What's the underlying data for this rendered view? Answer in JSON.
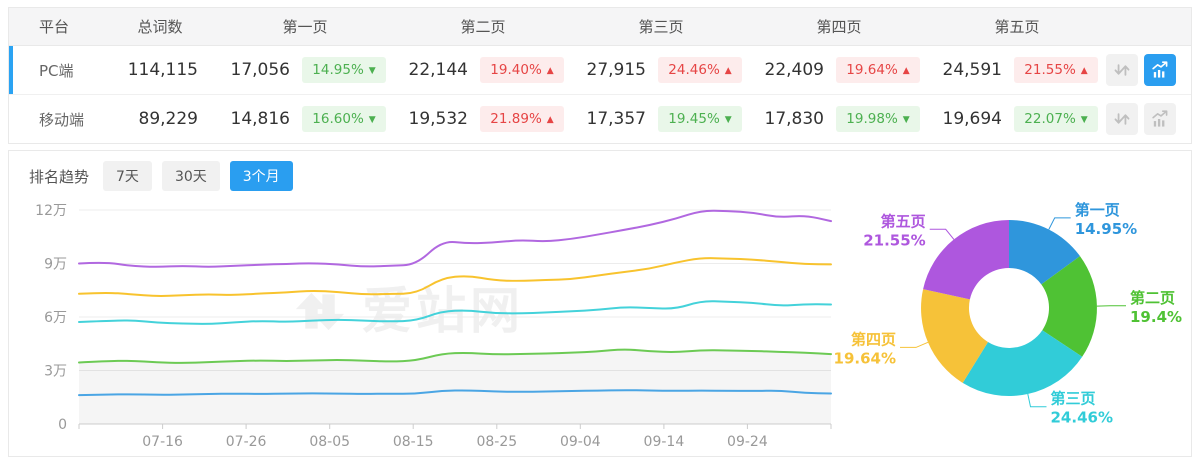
{
  "table": {
    "headers": {
      "platform": "平台",
      "total": "总词数",
      "pages": [
        "第一页",
        "第二页",
        "第三页",
        "第四页",
        "第五页"
      ]
    },
    "rows": [
      {
        "platform": "PC端",
        "total": "114,115",
        "selected": true,
        "chart_active": true,
        "pages": [
          {
            "count": "17,056",
            "pct": "14.95%",
            "dir": "down"
          },
          {
            "count": "22,144",
            "pct": "19.40%",
            "dir": "up"
          },
          {
            "count": "27,915",
            "pct": "24.46%",
            "dir": "up"
          },
          {
            "count": "22,409",
            "pct": "19.64%",
            "dir": "up"
          },
          {
            "count": "24,591",
            "pct": "21.55%",
            "dir": "up"
          }
        ]
      },
      {
        "platform": "移动端",
        "total": "89,229",
        "selected": false,
        "chart_active": false,
        "pages": [
          {
            "count": "14,816",
            "pct": "16.60%",
            "dir": "down"
          },
          {
            "count": "19,532",
            "pct": "21.89%",
            "dir": "up"
          },
          {
            "count": "17,357",
            "pct": "19.45%",
            "dir": "down"
          },
          {
            "count": "17,830",
            "pct": "19.98%",
            "dir": "down"
          },
          {
            "count": "19,694",
            "pct": "22.07%",
            "dir": "down"
          }
        ]
      }
    ],
    "icons": {
      "sort": "sort-arrows-icon",
      "chart": "trend-chart-icon"
    }
  },
  "trend": {
    "label": "排名趋势",
    "tabs": [
      {
        "label": "7天",
        "active": false
      },
      {
        "label": "30天",
        "active": false
      },
      {
        "label": "3个月",
        "active": true
      }
    ]
  },
  "watermark_text": "爱站网",
  "colors": {
    "accent_blue": "#2a9ef0",
    "selected_row_bar": "#2aa3f3",
    "badge_up_red": "#e64545",
    "badge_up_bg": "#fdecec",
    "badge_down_green": "#4cb050",
    "badge_down_bg": "#e9f7e9",
    "header_bg": "#f5f5f6",
    "border": "#e9e9e9",
    "grid_line": "#ececec",
    "axis_text": "#999999",
    "watermark": "#f0f0f0"
  },
  "chart_data": [
    {
      "type": "line",
      "title": "排名趋势 3个月",
      "stacked_cumulative": true,
      "unit": "万",
      "ylim_wan": [
        0,
        12
      ],
      "y_ticks": [
        {
          "v": 0,
          "label": "0"
        },
        {
          "v": 3,
          "label": "3万"
        },
        {
          "v": 6,
          "label": "6万"
        },
        {
          "v": 9,
          "label": "9万"
        },
        {
          "v": 12,
          "label": "12万"
        }
      ],
      "x_axis": {
        "span_days": 90,
        "tick_days": [
          10,
          20,
          30,
          40,
          50,
          60,
          70,
          80
        ],
        "tick_labels": [
          "07-16",
          "07-26",
          "08-05",
          "08-15",
          "08-25",
          "09-04",
          "09-14",
          "09-24"
        ],
        "edge_tick_days": [
          0,
          90
        ]
      },
      "series": [
        {
          "name": "第一页",
          "color": "#4aa5e4",
          "area": false,
          "values_wan": [
            1.62,
            1.65,
            1.67,
            1.64,
            1.65,
            1.68,
            1.7,
            1.68,
            1.7,
            1.72,
            1.7,
            1.68,
            1.7,
            1.7,
            1.87,
            1.89,
            1.82,
            1.8,
            1.82,
            1.85,
            1.87,
            1.9,
            1.88,
            1.86,
            1.88,
            1.86,
            1.85,
            1.88,
            1.74,
            1.71
          ]
        },
        {
          "name": "第二页",
          "color": "#6cca54",
          "area": true,
          "values_wan": [
            3.45,
            3.52,
            3.55,
            3.46,
            3.42,
            3.47,
            3.52,
            3.56,
            3.52,
            3.56,
            3.6,
            3.55,
            3.5,
            3.56,
            3.95,
            4.0,
            3.9,
            3.92,
            3.95,
            4.0,
            4.06,
            4.2,
            4.08,
            4.02,
            4.14,
            4.12,
            4.1,
            4.04,
            4.0,
            3.92
          ]
        },
        {
          "name": "第三页",
          "color": "#44d2da",
          "area": false,
          "values_wan": [
            5.72,
            5.78,
            5.82,
            5.68,
            5.63,
            5.6,
            5.7,
            5.78,
            5.72,
            5.8,
            5.85,
            5.8,
            5.75,
            5.8,
            6.32,
            6.38,
            6.22,
            6.2,
            6.25,
            6.32,
            6.4,
            6.56,
            6.5,
            6.45,
            6.9,
            6.85,
            6.8,
            6.62,
            6.72,
            6.7
          ]
        },
        {
          "name": "第四页",
          "color": "#f8c32e",
          "area": false,
          "values_wan": [
            7.3,
            7.38,
            7.28,
            7.16,
            7.22,
            7.28,
            7.22,
            7.32,
            7.38,
            7.48,
            7.4,
            7.26,
            7.3,
            7.32,
            8.18,
            8.32,
            8.06,
            8.02,
            8.08,
            8.12,
            8.32,
            8.52,
            8.7,
            9.05,
            9.32,
            9.28,
            9.22,
            9.1,
            8.96,
            8.95
          ]
        },
        {
          "name": "第五页",
          "color": "#b168e0",
          "area": false,
          "values_wan": [
            9.0,
            9.08,
            8.86,
            8.8,
            8.87,
            8.8,
            8.87,
            8.93,
            8.97,
            9.02,
            8.95,
            8.82,
            8.87,
            8.92,
            10.28,
            10.12,
            10.17,
            10.32,
            10.23,
            10.38,
            10.62,
            10.88,
            11.15,
            11.5,
            11.97,
            11.95,
            11.85,
            11.58,
            11.7,
            11.38
          ]
        }
      ]
    },
    {
      "type": "pie",
      "donut": true,
      "slices": [
        {
          "name": "第一页",
          "value_pct": 14.95,
          "label": "14.95%",
          "color": "#2f96dc"
        },
        {
          "name": "第二页",
          "value_pct": 19.4,
          "label": "19.4%",
          "color": "#4fc234"
        },
        {
          "name": "第三页",
          "value_pct": 24.46,
          "label": "24.46%",
          "color": "#31ccd8"
        },
        {
          "name": "第四页",
          "value_pct": 19.64,
          "label": "19.64%",
          "color": "#f6c239"
        },
        {
          "name": "第五页",
          "value_pct": 21.55,
          "label": "21.55%",
          "color": "#ae57de"
        }
      ]
    }
  ]
}
